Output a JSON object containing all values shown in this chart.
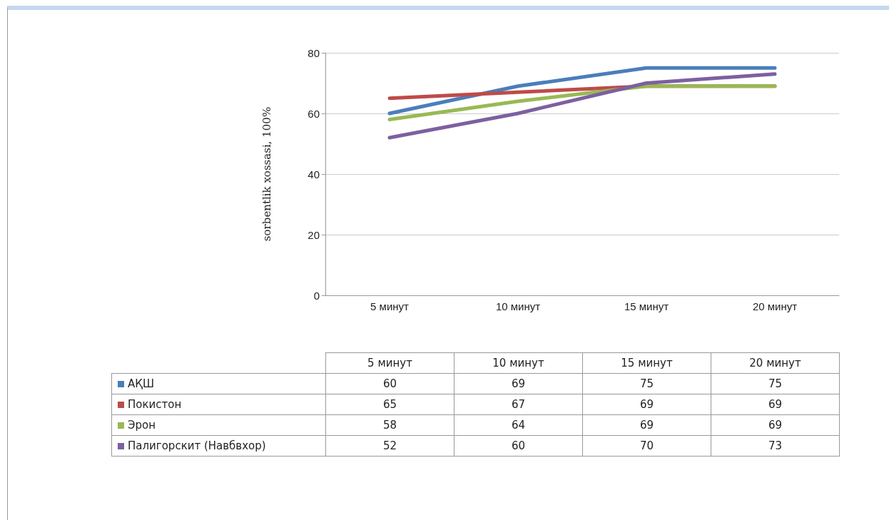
{
  "chart_data": {
    "type": "line",
    "ylabel": "sorbentlik xossasi, 100%",
    "categories": [
      "5 минут",
      "10 минут",
      "15 минут",
      "20 минут"
    ],
    "series": [
      {
        "name": "АҚШ",
        "color": "#4a7ebb",
        "values": [
          60,
          69,
          75,
          75
        ]
      },
      {
        "name": "Покистон",
        "color": "#be4b48",
        "values": [
          65,
          67,
          69,
          69
        ]
      },
      {
        "name": "Эрон",
        "color": "#98b954",
        "values": [
          58,
          64,
          69,
          69
        ]
      },
      {
        "name": "Палигорскит (Навбвхор)",
        "color": "#7d60a0",
        "values": [
          52,
          60,
          70,
          73
        ]
      }
    ],
    "ylim": [
      0,
      80
    ],
    "yticks": [
      0,
      20,
      40,
      60,
      80
    ],
    "grid": "y",
    "legend": "bottom",
    "data_labels": true,
    "marker": "none",
    "line_style": "solid"
  }
}
